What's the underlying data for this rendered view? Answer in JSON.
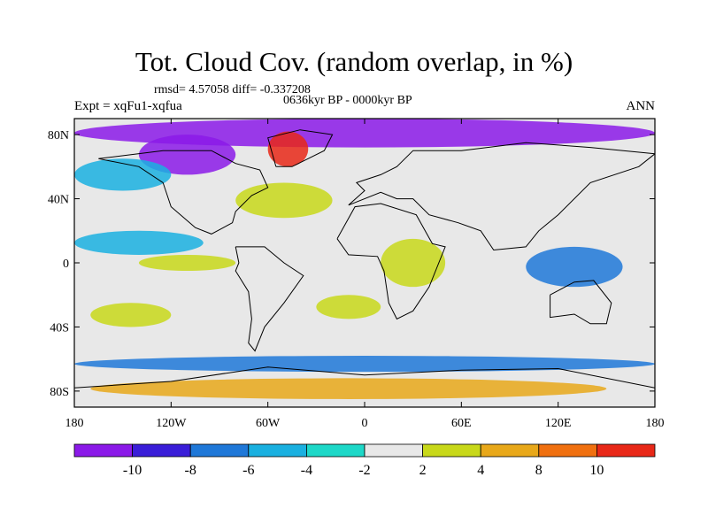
{
  "header": {
    "title": "Tot. Cloud Cov. (random overlap, in %)",
    "stats": "rmsd= 4.57058 diff= -0.337208",
    "period": "0636kyr BP - 0000kyr BP",
    "experiment": "Expt = xqFu1-xqfua",
    "season": "ANN"
  },
  "map": {
    "lon_range": [
      -180,
      180
    ],
    "lat_range": [
      -90,
      90
    ],
    "y_ticks": [
      {
        "lat": 80,
        "label": "80N"
      },
      {
        "lat": 40,
        "label": "40N"
      },
      {
        "lat": 0,
        "label": "0"
      },
      {
        "lat": -40,
        "label": "40S"
      },
      {
        "lat": -80,
        "label": "80S"
      }
    ],
    "x_ticks": [
      {
        "lon": -180,
        "label": "180"
      },
      {
        "lon": -120,
        "label": "120W"
      },
      {
        "lon": -60,
        "label": "60W"
      },
      {
        "lon": 0,
        "label": "0"
      },
      {
        "lon": 60,
        "label": "60E"
      },
      {
        "lon": 120,
        "label": "120E"
      },
      {
        "lon": 180,
        "label": "180"
      }
    ],
    "regions": [
      {
        "name": "arctic-ocean-decrease",
        "level": -10,
        "lon": [
          -180,
          180
        ],
        "lat": [
          72,
          90
        ]
      },
      {
        "name": "canada-decrease",
        "level": -10,
        "lon": [
          -140,
          -80
        ],
        "lat": [
          55,
          80
        ]
      },
      {
        "name": "greenland-increase",
        "level": 10,
        "lon": [
          -60,
          -35
        ],
        "lat": [
          60,
          82
        ]
      },
      {
        "name": "north-atlantic-increase",
        "level": 4,
        "lon": [
          -80,
          -20
        ],
        "lat": [
          28,
          50
        ]
      },
      {
        "name": "north-pacific-decrease",
        "level": -4,
        "lon": [
          -180,
          -120
        ],
        "lat": [
          45,
          65
        ]
      },
      {
        "name": "tropical-pacific-decrease",
        "level": -4,
        "lon": [
          -180,
          -100
        ],
        "lat": [
          5,
          20
        ]
      },
      {
        "name": "west-pacific-decrease",
        "level": -6,
        "lon": [
          100,
          160
        ],
        "lat": [
          -15,
          10
        ]
      },
      {
        "name": "east-pacific-increase",
        "level": 4,
        "lon": [
          -140,
          -80
        ],
        "lat": [
          -5,
          5
        ]
      },
      {
        "name": "africa-increase",
        "level": 4,
        "lon": [
          10,
          50
        ],
        "lat": [
          -15,
          15
        ]
      },
      {
        "name": "south-pacific-increase",
        "level": 2,
        "lon": [
          -170,
          -120
        ],
        "lat": [
          -40,
          -25
        ]
      },
      {
        "name": "south-atlantic-increase",
        "level": 4,
        "lon": [
          -30,
          10
        ],
        "lat": [
          -35,
          -20
        ]
      },
      {
        "name": "southern-ocean-decrease",
        "level": -6,
        "lon": [
          -180,
          180
        ],
        "lat": [
          -68,
          -58
        ]
      },
      {
        "name": "antarctic-increase",
        "level": 8,
        "lon": [
          -170,
          150
        ],
        "lat": [
          -85,
          -72
        ]
      }
    ]
  },
  "colorbar": {
    "labels": [
      "-10",
      "-8",
      "-6",
      "-4",
      "-2",
      "2",
      "4",
      "8",
      "10"
    ],
    "colors": [
      "#8b1ae8",
      "#3a1ed8",
      "#1f78d8",
      "#1ab0e0",
      "#1ed8c8",
      "#e8e8e8",
      "#c8d81a",
      "#e8a81a",
      "#f07010",
      "#e82818"
    ]
  }
}
